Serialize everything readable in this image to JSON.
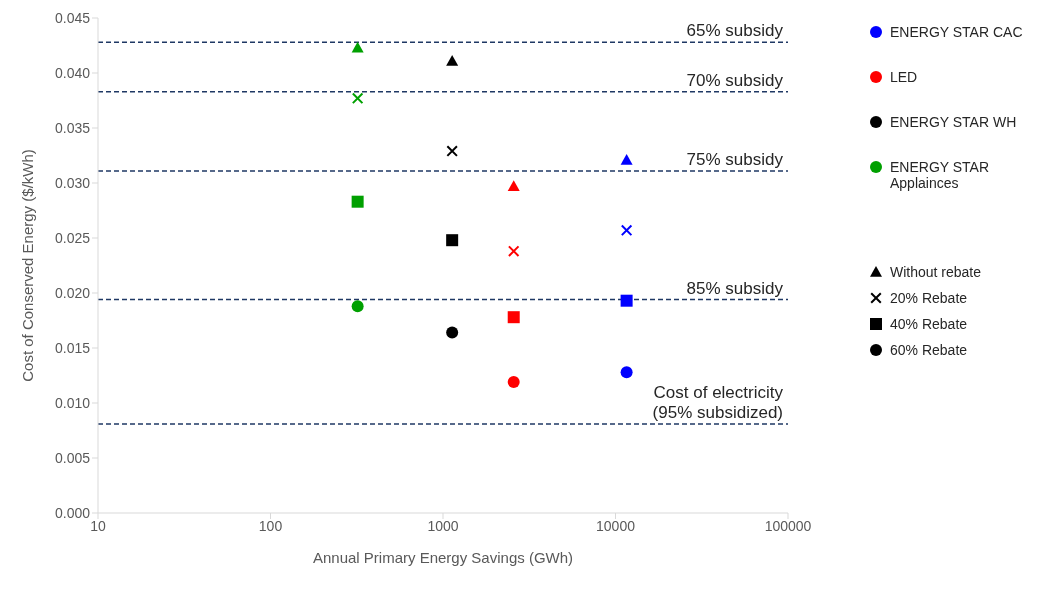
{
  "chart_data": {
    "type": "scatter",
    "xlabel": "Annual Primary Energy Savings (GWh)",
    "ylabel": "Cost of Conserved Energy ($/kWh)",
    "log": "x",
    "legend": "right",
    "xlim": [
      10,
      100000
    ],
    "xticks": [
      10,
      100,
      1000,
      10000,
      100000
    ],
    "ylim": [
      0,
      0.045
    ],
    "yticks": [
      {
        "value": 0,
        "label": "0.000"
      },
      {
        "value": 0.005,
        "label": "0.005"
      },
      {
        "value": 0.01,
        "label": "0.010"
      },
      {
        "value": 0.015,
        "label": "0.015"
      },
      {
        "value": 0.02,
        "label": "0.020"
      },
      {
        "value": 0.025,
        "label": "0.025"
      },
      {
        "value": 0.03,
        "label": "0.030"
      },
      {
        "value": 0.035,
        "label": "0.035"
      },
      {
        "value": 0.04,
        "label": "0.040"
      },
      {
        "value": 0.045,
        "label": "0.045"
      }
    ],
    "series": [
      {
        "name": "ENERGY STAR CAC",
        "color": "#0000ff",
        "marker": "circle",
        "x": [
          11600
        ],
        "values": [
          0.0128
        ]
      },
      {
        "name": "LED",
        "color": "#ff0000",
        "marker": "circle",
        "x": [
          2570
        ],
        "values": [
          0.0119
        ]
      },
      {
        "name": "ENERGY STAR WH",
        "color": "#000000",
        "marker": "circle",
        "x": [
          1130
        ],
        "values": [
          0.0164
        ]
      },
      {
        "name": "ENERGY STAR Applainces",
        "color": "#00a000",
        "marker": "circle",
        "x": [
          320
        ],
        "values": [
          0.0188
        ]
      },
      {
        "name": "Without rebate",
        "color": "#000000",
        "marker": "triangle",
        "x": [
          11600,
          2570,
          1130,
          320
        ],
        "values": [
          0.0321,
          0.0297,
          0.0411,
          0.0423
        ],
        "colors": [
          "#0000ff",
          "#ff0000",
          "#000000",
          "#00a000"
        ]
      },
      {
        "name": "20% Rebate",
        "color": "#000000",
        "marker": "cross",
        "x": [
          11600,
          2570,
          1130,
          320
        ],
        "values": [
          0.0257,
          0.0238,
          0.0329,
          0.0377
        ],
        "colors": [
          "#0000ff",
          "#ff0000",
          "#000000",
          "#00a000"
        ]
      },
      {
        "name": "40% Rebate",
        "color": "#000000",
        "marker": "square",
        "x": [
          11600,
          2570,
          1130,
          320
        ],
        "values": [
          0.0193,
          0.0178,
          0.0248,
          0.0283
        ],
        "colors": [
          "#0000ff",
          "#ff0000",
          "#000000",
          "#00a000"
        ]
      }
    ],
    "annotations": [
      "60% Rebate"
    ],
    "ref_lines": [
      {
        "axis": "y",
        "value": 0.0428,
        "label": "65% subsidy",
        "color": "#1f3864",
        "line_style": "dashed"
      },
      {
        "axis": "y",
        "value": 0.0383,
        "label": "70% subsidy",
        "color": "#1f3864",
        "line_style": "dashed"
      },
      {
        "axis": "y",
        "value": 0.0311,
        "label": "75% subsidy",
        "color": "#1f3864",
        "line_style": "dashed"
      },
      {
        "axis": "y",
        "value": 0.0194,
        "label": "85% subsidy",
        "color": "#1f3864",
        "line_style": "dashed"
      },
      {
        "axis": "y",
        "value": 0.0081,
        "label": "Cost of electricity\n(95% subsidized)",
        "color": "#1f3864",
        "line_style": "dashed"
      }
    ]
  }
}
